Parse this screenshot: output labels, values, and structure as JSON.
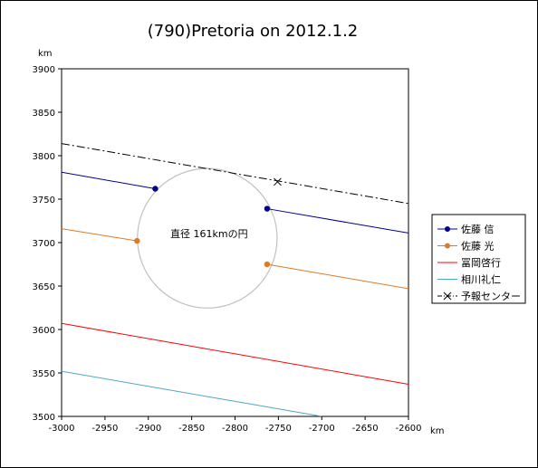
{
  "chart_data": {
    "type": "line",
    "title": "(790)Pretoria on 2012.1.2",
    "xunit": "km",
    "yunit": "km",
    "xlim": [
      -3000,
      -2600
    ],
    "ylim": [
      3500,
      3900
    ],
    "xticks": [
      -3000,
      -2950,
      -2900,
      -2850,
      -2800,
      -2750,
      -2700,
      -2650,
      -2600
    ],
    "yticks": [
      3500,
      3550,
      3600,
      3650,
      3700,
      3750,
      3800,
      3850,
      3900
    ],
    "grid": false,
    "legend_position": "right",
    "circle": {
      "label": "直径 161kmの円",
      "center": [
        -2832,
        3705
      ],
      "diameter_km": 161,
      "color": "#c0c0c0"
    },
    "series": [
      {
        "name": "佐藤 信",
        "color": "#00008b",
        "style": "solid",
        "marker": "dot",
        "segments": [
          {
            "x": [
              -3000,
              -2892
            ],
            "y": [
              3781,
              3762
            ]
          },
          {
            "x": [
              -2763,
              -2600
            ],
            "y": [
              3739,
              3711
            ]
          }
        ],
        "points": [
          {
            "x": -2892,
            "y": 3762
          },
          {
            "x": -2763,
            "y": 3739
          }
        ]
      },
      {
        "name": "佐藤 光",
        "color": "#e07a1e",
        "style": "solid",
        "marker": "dot",
        "segments": [
          {
            "x": [
              -3000,
              -2913
            ],
            "y": [
              3716,
              3702
            ]
          },
          {
            "x": [
              -2763,
              -2600
            ],
            "y": [
              3675,
              3647
            ]
          }
        ],
        "points": [
          {
            "x": -2913,
            "y": 3702
          },
          {
            "x": -2763,
            "y": 3675
          }
        ]
      },
      {
        "name": "冨岡啓行",
        "color": "#ff0000",
        "style": "solid",
        "marker": "none",
        "segments": [
          {
            "x": [
              -3000,
              -2600
            ],
            "y": [
              3607,
              3537
            ]
          }
        ]
      },
      {
        "name": "相川礼仁",
        "color": "#4da6c8",
        "style": "solid",
        "marker": "none",
        "segments": [
          {
            "x": [
              -3000,
              -2700
            ],
            "y": [
              3552,
              3500
            ]
          }
        ]
      },
      {
        "name": "予報センター",
        "color": "#000000",
        "style": "dashdot",
        "marker": "x",
        "segments": [
          {
            "x": [
              -3000,
              -2600
            ],
            "y": [
              3814,
              3745
            ]
          }
        ],
        "points": [
          {
            "x": -2751,
            "y": 3770
          }
        ]
      }
    ]
  }
}
